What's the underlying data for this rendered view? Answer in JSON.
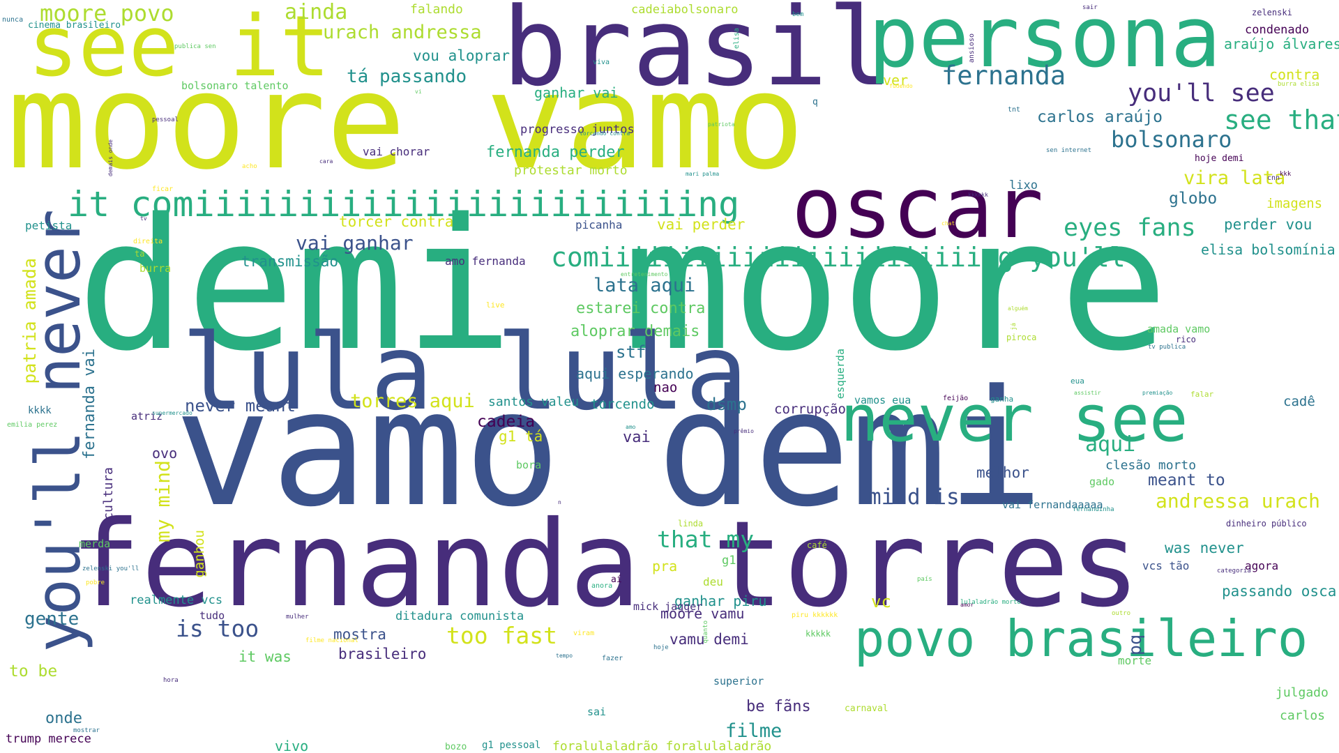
{
  "palette": {
    "dark_purple": "#440154",
    "indigo": "#472d7b",
    "blue": "#3b528b",
    "steel": "#2c728e",
    "teal": "#21918c",
    "green_teal": "#28ae80",
    "green": "#5ec962",
    "lime": "#addc30",
    "yellow": "#fde725",
    "chartreuse": "#d2e21b"
  },
  "words": [
    "demi moore",
    "vamo demi",
    "fernanda torres",
    "moore vamo",
    "brasil",
    "lula lula",
    "persona",
    "see it",
    "oscar",
    "never see",
    "you'll never",
    "povo brasileiro",
    "it comiiiiiiiiiiiiiiiiiiiiiiiing",
    "comiiiiiiiiiiiiiiiiiiiiiiiing you'll",
    "moore povo",
    "ainda",
    "urach andressa",
    "falando",
    "cadeiabolsonaro",
    "zelenski",
    "condenado",
    "araújo álvares",
    "vou aloprar",
    "tá passando",
    "fernanda",
    "you'll see",
    "see that",
    "carlos araújo",
    "bolsonaro",
    "contra",
    "ganhar vai",
    "progresso juntos",
    "fernanda perder",
    "vai chorar",
    "protestar morto",
    "vira lata",
    "globo",
    "imagens",
    "torcer contra",
    "vai perder",
    "picanha",
    "eyes fans",
    "perder vou",
    "vai ganhar",
    "transmissão",
    "amo fernanda",
    "elisa bolsomínia",
    "lata aqui",
    "estarei contra",
    "aloprar demais",
    "stf",
    "aqui esperando",
    "nao",
    "patria amada",
    "fernanda vai",
    "never meant",
    "torres aqui",
    "santos valeu",
    "torcendo",
    "dsmp",
    "corrupção",
    "vamos eua",
    "cadê",
    "atriz",
    "cadeia",
    "g1 tá",
    "vai",
    "aqui",
    "ovo",
    "cultura",
    "my mind",
    "ganhou",
    "gente",
    "mind is",
    "that my",
    "pra",
    "melhor",
    "clesão morto",
    "meant to",
    "andressa urach",
    "was never",
    "vcs tão",
    "agora",
    "passando oscar",
    "is too",
    "too fast",
    "mostra",
    "it was",
    "brasileiro",
    "vamu demi",
    "moore vamu",
    "ganhar piru",
    "mick jagger",
    "ditadura comunista",
    "realmente vcs",
    "tudo",
    "vc",
    "to be",
    "onde",
    "trump merece",
    "vivo",
    "bozo",
    "g1 pessoal",
    "foralulaladrão foralulaladrão",
    "filme",
    "be fãns",
    "superior",
    "sai",
    "carnaval",
    "julgado",
    "carlos",
    "morte",
    "pq",
    "kkkk",
    "emilia perez",
    "supermercado",
    "petista",
    "ta",
    "burra",
    "direita",
    "live",
    "merda",
    "zelenski you'll",
    "pobre",
    "nunca",
    "cinema brasileiro",
    "publica sen",
    "viva",
    "bolsonaro talento",
    "vi",
    "pessoal",
    "demais onde",
    "cara",
    "ficar",
    "tv",
    "acho",
    "torcendo contra",
    "patriota",
    "mari palma",
    "chat",
    "entretenimento",
    "g1",
    "deu",
    "anora",
    "aí",
    "n",
    "bora",
    "prêmio",
    "amo",
    "hora",
    "mostrar",
    "mulher",
    "filme nacional",
    "viram",
    "hoje",
    "tempo",
    "fazer",
    "quanto",
    "piru kkkkkk",
    "kkkkk",
    "café",
    "linda",
    "país",
    "amor",
    "lulaladrão morto",
    "outro",
    "dinheiro público",
    "categoria",
    "fernandinha",
    "vai fernandaaaaa",
    "gado",
    "esquerda",
    "feijão",
    "ganha",
    "assistir",
    "premiação",
    "falar",
    "eua",
    "alguém",
    "já",
    "piroca",
    "amada vamo",
    "rico",
    "tv publica",
    "lixo",
    "cnn",
    "kkk",
    "kkkkkk",
    "q",
    "ver",
    "tnt",
    "sen internet",
    "hoje demi",
    "burra elisa",
    "sair",
    "bem",
    "elisa",
    "ansioso",
    "fudendo"
  ]
}
